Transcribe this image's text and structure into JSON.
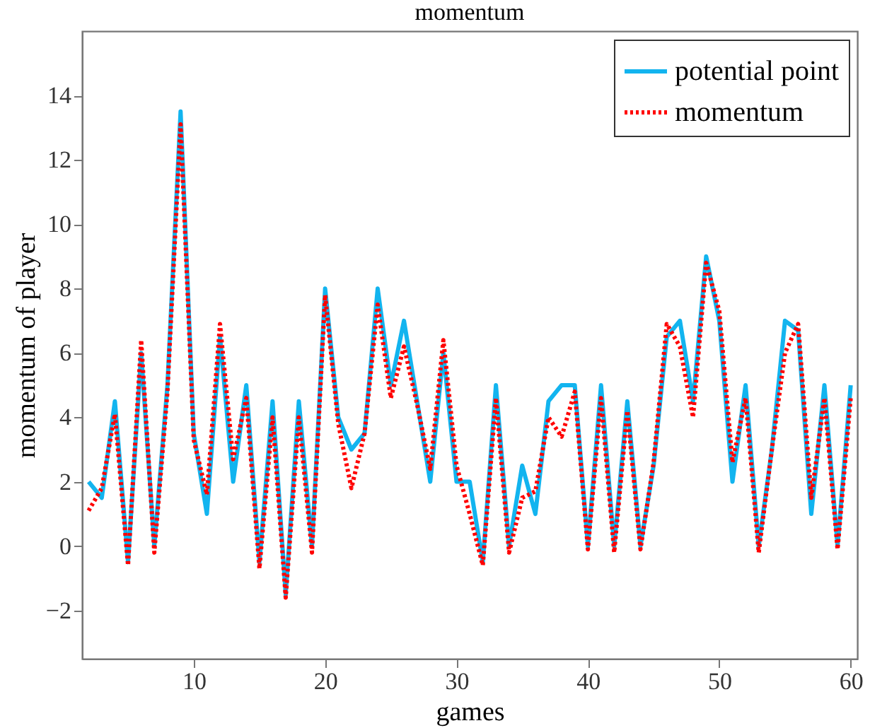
{
  "chart_data": {
    "type": "line",
    "title": "momentum",
    "xlabel": "games",
    "ylabel": "momentum of player",
    "x": [
      2,
      3,
      4,
      5,
      6,
      7,
      8,
      9,
      10,
      11,
      12,
      13,
      14,
      15,
      16,
      17,
      18,
      19,
      20,
      21,
      22,
      23,
      24,
      25,
      26,
      27,
      28,
      29,
      30,
      31,
      32,
      33,
      34,
      35,
      36,
      37,
      38,
      39,
      40,
      41,
      42,
      43,
      44,
      45,
      46,
      47,
      48,
      49,
      50,
      51,
      52,
      53,
      54,
      55,
      56,
      57,
      58,
      59,
      60
    ],
    "series": [
      {
        "name": "potential point",
        "color": "#12b4ef",
        "line_style": "solid",
        "values": [
          2,
          1.5,
          4.5,
          -0.5,
          6,
          0,
          5,
          13.5,
          3.5,
          1,
          6.5,
          2,
          5,
          -0.5,
          4.5,
          -1.5,
          4.5,
          0,
          8,
          4,
          3,
          3.5,
          8,
          5,
          7,
          4.5,
          2,
          6,
          2,
          2,
          -0.5,
          5,
          0,
          2.5,
          1,
          4.5,
          5,
          5,
          0,
          5,
          0,
          4.5,
          0,
          2.5,
          6.5,
          7,
          4.5,
          9,
          7,
          2,
          5,
          0,
          3,
          7,
          6.7,
          1,
          5,
          0,
          5
        ]
      },
      {
        "name": "momentum",
        "color": "#ff0000",
        "line_style": "dotted",
        "values": [
          1.1,
          1.8,
          4.1,
          -0.6,
          6.4,
          -0.2,
          4.8,
          13.1,
          3.3,
          1.6,
          6.9,
          2.7,
          4.6,
          -0.7,
          4,
          -1.6,
          4,
          -0.2,
          7.8,
          3.8,
          1.8,
          3.5,
          7.5,
          4.6,
          6.2,
          4.4,
          2.4,
          6.4,
          2.5,
          1,
          -0.6,
          4.6,
          -0.2,
          1.5,
          1.7,
          4,
          3.4,
          4.8,
          -0.1,
          4.6,
          -0.2,
          4.2,
          -0.1,
          2.6,
          6.9,
          6.2,
          4,
          8.8,
          7.3,
          2.6,
          4.6,
          -0.2,
          3,
          6,
          6.9,
          1.5,
          4.6,
          -0.1,
          4.6
        ]
      }
    ],
    "xlim": [
      1.5,
      60.5
    ],
    "ylim": [
      -3.5,
      16
    ],
    "xticks": [
      10,
      20,
      30,
      40,
      50,
      60
    ],
    "yticks": [
      -2,
      0,
      2,
      4,
      6,
      8,
      10,
      12,
      14
    ],
    "grid": false,
    "legend": "top right"
  }
}
